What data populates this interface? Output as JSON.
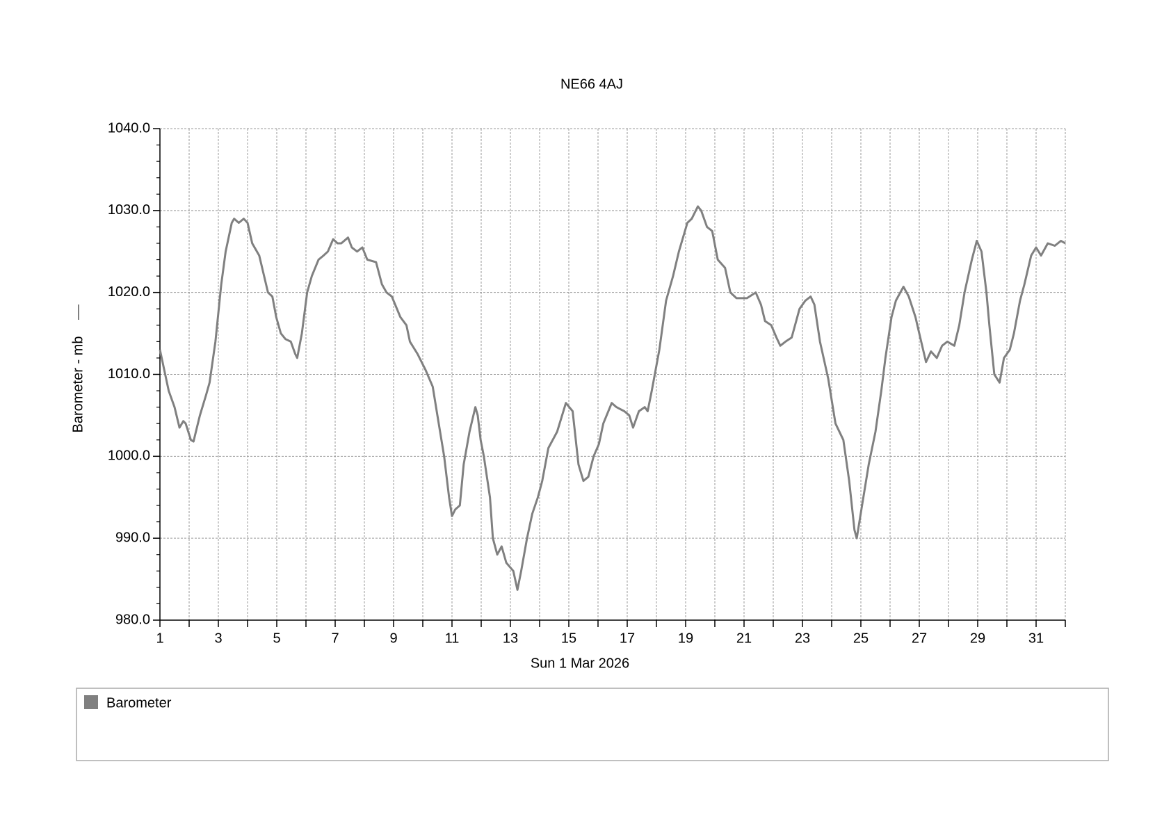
{
  "chart_data": {
    "type": "line",
    "title": "NE66 4AJ",
    "x_label": "Sun 1 Mar 2026",
    "y_label": "Barometer - mb",
    "xlim": [
      1,
      32
    ],
    "xticks": [
      1,
      3,
      5,
      7,
      9,
      11,
      13,
      15,
      17,
      19,
      21,
      23,
      25,
      27,
      29,
      31
    ],
    "xminorticks": [
      2,
      4,
      6,
      8,
      10,
      12,
      14,
      16,
      18,
      20,
      22,
      24,
      26,
      28,
      30,
      32
    ],
    "ylim": [
      980,
      1040
    ],
    "yticks": [
      {
        "value": 980,
        "label": "980.0"
      },
      {
        "value": 990,
        "label": "990.0"
      },
      {
        "value": 1000,
        "label": "1000.0"
      },
      {
        "value": 1010,
        "label": "1010.0"
      },
      {
        "value": 1020,
        "label": "1020.0"
      },
      {
        "value": 1030,
        "label": "1030.0"
      },
      {
        "value": 1040,
        "label": "1040.0"
      }
    ],
    "yminorticks": [
      982,
      984,
      986,
      988,
      992,
      994,
      996,
      998,
      1002,
      1004,
      1006,
      1008,
      1012,
      1014,
      1016,
      1018,
      1022,
      1024,
      1026,
      1028,
      1032,
      1034,
      1036,
      1038
    ],
    "grid": true,
    "series": [
      {
        "name": "Barometer",
        "color": "#808080",
        "x": [
          1,
          1.3,
          1.5,
          1.67,
          1.8,
          1.88,
          2.06,
          2.15,
          2.23,
          2.37,
          2.58,
          2.7,
          2.9,
          3.1,
          3.25,
          3.46,
          3.54,
          3.7,
          3.87,
          4,
          4.16,
          4.4,
          4.5,
          4.7,
          4.85,
          4.98,
          5.14,
          5.3,
          5.48,
          5.63,
          5.7,
          5.86,
          6.04,
          6.2,
          6.43,
          6.6,
          6.75,
          6.93,
          7.08,
          7.21,
          7.44,
          7.57,
          7.75,
          7.93,
          8.1,
          8.4,
          8.6,
          8.76,
          8.94,
          9.23,
          9.44,
          9.56,
          9.82,
          10.1,
          10.34,
          10.5,
          10.73,
          10.9,
          11,
          11.11,
          11.27,
          11.4,
          11.6,
          11.8,
          11.88,
          11.98,
          12.09,
          12.3,
          12.4,
          12.55,
          12.7,
          12.86,
          13.1,
          13.24,
          13.37,
          13.57,
          13.75,
          13.94,
          14.09,
          14.3,
          14.6,
          14.9,
          15.13,
          15.33,
          15.5,
          15.67,
          15.85,
          16.03,
          16.18,
          16.47,
          16.63,
          16.9,
          17.07,
          17.2,
          17.4,
          17.6,
          17.7,
          17.84,
          18.1,
          18.33,
          18.57,
          18.77,
          19.06,
          19.21,
          19.42,
          19.53,
          19.73,
          19.91,
          20.1,
          20.35,
          20.53,
          20.74,
          21.1,
          21.4,
          21.58,
          21.72,
          21.93,
          22.11,
          22.24,
          22.42,
          22.63,
          22.9,
          23.1,
          23.28,
          23.41,
          23.6,
          23.88,
          24.13,
          24.4,
          24.6,
          24.78,
          24.86,
          25.04,
          25.27,
          25.5,
          25.7,
          25.84,
          26.05,
          26.2,
          26.46,
          26.64,
          26.87,
          27,
          27.23,
          27.4,
          27.6,
          27.78,
          27.96,
          28.2,
          28.37,
          28.55,
          28.8,
          28.97,
          29.13,
          29.3,
          29.4,
          29.57,
          29.75,
          29.9,
          30.1,
          30.24,
          30.45,
          30.6,
          30.83,
          31,
          31.17,
          31.4,
          31.64,
          31.85,
          32
        ],
        "values": [
          1013,
          1008,
          1006,
          1003.5,
          1004.3,
          1004,
          1002,
          1001.8,
          1003,
          1005,
          1007.5,
          1009,
          1014,
          1021,
          1025,
          1028.5,
          1029,
          1028.5,
          1029,
          1028.5,
          1026,
          1024.5,
          1023,
          1020,
          1019.5,
          1017,
          1015,
          1014.3,
          1014,
          1012.5,
          1012,
          1015,
          1020,
          1022,
          1024,
          1024.5,
          1025,
          1026.5,
          1026,
          1026,
          1026.7,
          1025.5,
          1025,
          1025.5,
          1024,
          1023.7,
          1021,
          1020,
          1019.5,
          1017,
          1016,
          1014,
          1012.5,
          1010.5,
          1008.5,
          1005,
          1000,
          995,
          992.7,
          993.5,
          994,
          999,
          1003,
          1006,
          1005,
          1002,
          1000,
          995,
          990,
          988,
          989,
          987,
          986,
          983.7,
          986,
          990,
          993,
          995,
          997,
          1001,
          1003,
          1006.5,
          1005.5,
          999,
          997,
          997.5,
          1000,
          1001.5,
          1004,
          1006.5,
          1006,
          1005.5,
          1005,
          1003.5,
          1005.5,
          1006,
          1005.5,
          1008,
          1013,
          1019,
          1022,
          1025,
          1028.5,
          1029,
          1030.5,
          1030,
          1028,
          1027.5,
          1024,
          1023,
          1020,
          1019.3,
          1019.3,
          1020,
          1018.5,
          1016.5,
          1016,
          1014.5,
          1013.5,
          1014,
          1014.5,
          1018,
          1019,
          1019.5,
          1018.5,
          1014,
          1009.5,
          1004,
          1002,
          997,
          991,
          990,
          994,
          999,
          1003,
          1008,
          1012,
          1017,
          1019,
          1020.7,
          1019.5,
          1017,
          1015,
          1011.5,
          1012.8,
          1012,
          1013.5,
          1014,
          1013.5,
          1016,
          1020,
          1024,
          1026.3,
          1025,
          1020,
          1016,
          1010,
          1009,
          1012,
          1013,
          1015,
          1019,
          1021,
          1024.5,
          1025.5,
          1024.5,
          1026,
          1025.7,
          1026.3,
          1026
        ]
      }
    ]
  }
}
